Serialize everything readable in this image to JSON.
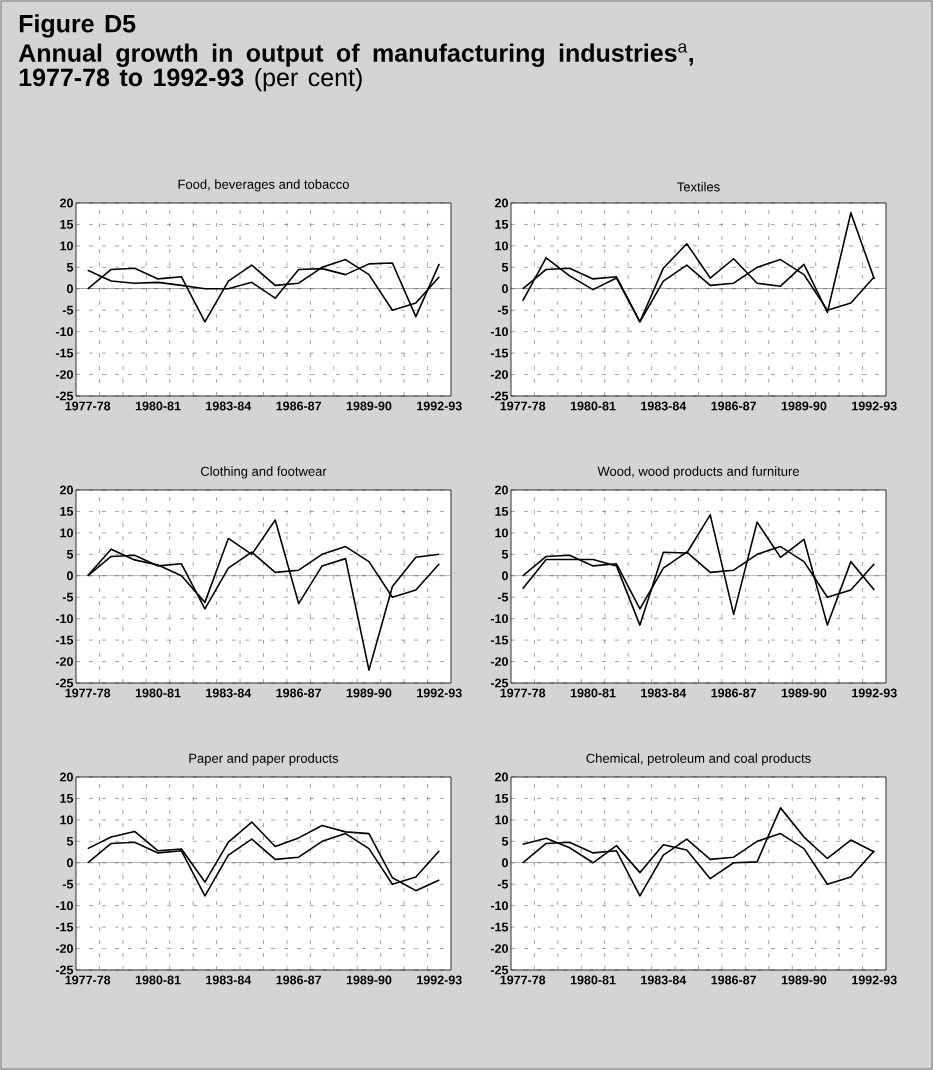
{
  "chart_data": [
    {
      "type": "line",
      "title": "Food, beverages and tobacco",
      "annotations": [
        "Figure D5",
        "**Annual growth in output of manufacturing industries**$^{a}$**, 1977-78 to 1992-93** (per cent)"
      ],
      "categories": [
        "1977-78",
        null,
        null,
        "1980-81",
        null,
        null,
        "1983-84",
        null,
        null,
        "1986-87",
        null,
        null,
        "1989-90",
        null,
        null,
        "1992-93"
      ],
      "series": [
        {
          "color": "#000000",
          "values": [
            4.3,
            1.8,
            1.3,
            1.5,
            0.8,
            0,
            0,
            1.5,
            -2.2,
            4.5,
            4.7,
            3.3,
            5.8,
            6,
            -6.5,
            5.8
          ]
        },
        {
          "color": "#000000",
          "values": [
            0,
            4.5,
            4.8,
            2.3,
            2.8,
            -7.7,
            1.8,
            5.5,
            0.8,
            1.3,
            5,
            6.8,
            3.3,
            -5,
            -3.3,
            2.8
          ]
        }
      ],
      "ylim": [
        -25,
        20
      ],
      "yticks": [
        -25,
        -20,
        -15,
        -10,
        -5,
        0,
        5,
        10,
        15,
        20
      ],
      "grid": true,
      "ref_lines": [
        {
          "axis": "y",
          "value": 0
        }
      ]
    },
    {
      "type": "line",
      "title": "Textiles",
      "categories": [
        "1977-78",
        null,
        null,
        "1980-81",
        null,
        null,
        "1983-84",
        null,
        null,
        "1986-87",
        null,
        null,
        "1989-90",
        null,
        null,
        "1992-93"
      ],
      "series": [
        {
          "color": "#000000",
          "values": [
            -2.8,
            7.2,
            3,
            -0.2,
            2.5,
            -7.7,
            4.8,
            10.5,
            2.5,
            7,
            1.3,
            0.6,
            5.7,
            -5.5,
            17.7,
            2.3
          ]
        },
        {
          "color": "#000000",
          "values": [
            0,
            4.5,
            4.8,
            2.3,
            2.8,
            -7.7,
            1.8,
            5.5,
            0.8,
            1.3,
            5,
            6.8,
            3.3,
            -5,
            -3.3,
            2.8
          ]
        }
      ],
      "ylim": [
        -25,
        20
      ],
      "yticks": [
        -25,
        -20,
        -15,
        -10,
        -5,
        0,
        5,
        10,
        15,
        20
      ],
      "grid": true,
      "ref_lines": [
        {
          "axis": "y",
          "value": 0
        }
      ]
    },
    {
      "type": "line",
      "title": "Clothing and footwear",
      "categories": [
        "1977-78",
        null,
        null,
        "1980-81",
        null,
        null,
        "1983-84",
        null,
        null,
        "1986-87",
        null,
        null,
        "1989-90",
        null,
        null,
        "1992-93"
      ],
      "series": [
        {
          "color": "#000000",
          "values": [
            0,
            6.2,
            3.7,
            2.5,
            0,
            -6.2,
            8.7,
            5,
            13,
            -6.5,
            2.3,
            4,
            -22,
            -2.5,
            4.3,
            5
          ]
        },
        {
          "color": "#000000",
          "values": [
            0,
            4.5,
            4.8,
            2.3,
            2.8,
            -7.7,
            1.8,
            5.5,
            0.8,
            1.3,
            5,
            6.8,
            3.3,
            -5,
            -3.3,
            2.8
          ]
        }
      ],
      "ylim": [
        -25,
        20
      ],
      "yticks": [
        -25,
        -20,
        -15,
        -10,
        -5,
        0,
        5,
        10,
        15,
        20
      ],
      "grid": true,
      "ref_lines": [
        {
          "axis": "y",
          "value": 0
        }
      ]
    },
    {
      "type": "line",
      "title": "Wood, wood products and furniture",
      "categories": [
        "1977-78",
        null,
        null,
        "1980-81",
        null,
        null,
        "1983-84",
        null,
        null,
        "1986-87",
        null,
        null,
        "1989-90",
        null,
        null,
        "1992-93"
      ],
      "series": [
        {
          "color": "#000000",
          "values": [
            -3,
            3.8,
            3.8,
            3.8,
            2.3,
            -11.5,
            5.5,
            5.3,
            14.2,
            -9,
            12.5,
            4.3,
            8.5,
            -11.5,
            3.3,
            -3.3
          ]
        },
        {
          "color": "#000000",
          "values": [
            0,
            4.5,
            4.8,
            2.3,
            2.8,
            -7.7,
            1.8,
            5.5,
            0.8,
            1.3,
            5,
            6.8,
            3.3,
            -5,
            -3.3,
            2.8
          ]
        }
      ],
      "ylim": [
        -25,
        20
      ],
      "yticks": [
        -25,
        -20,
        -15,
        -10,
        -5,
        0,
        5,
        10,
        15,
        20
      ],
      "grid": true,
      "ref_lines": [
        {
          "axis": "y",
          "value": 0
        }
      ]
    },
    {
      "type": "line",
      "title": "Paper and paper products",
      "categories": [
        "1977-78",
        null,
        null,
        "1980-81",
        null,
        null,
        "1983-84",
        null,
        null,
        "1986-87",
        null,
        null,
        "1989-90",
        null,
        null,
        "1992-93"
      ],
      "series": [
        {
          "color": "#000000",
          "values": [
            3.3,
            6,
            7.3,
            2.8,
            3.2,
            -4.5,
            4.8,
            9.5,
            3.8,
            5.8,
            8.7,
            7.2,
            6.8,
            -3.5,
            -6.5,
            -4
          ]
        },
        {
          "color": "#000000",
          "values": [
            0,
            4.5,
            4.8,
            2.3,
            2.8,
            -7.7,
            1.8,
            5.5,
            0.8,
            1.3,
            5,
            6.8,
            3.3,
            -5,
            -3.3,
            2.8
          ]
        }
      ],
      "ylim": [
        -25,
        20
      ],
      "yticks": [
        -25,
        -20,
        -15,
        -10,
        -5,
        0,
        5,
        10,
        15,
        20
      ],
      "grid": true,
      "ref_lines": [
        {
          "axis": "y",
          "value": 0
        }
      ]
    },
    {
      "type": "line",
      "title": "Chemical, petroleum and coal products",
      "categories": [
        "1977-78",
        null,
        null,
        "1980-81",
        null,
        null,
        "1983-84",
        null,
        null,
        "1986-87",
        null,
        null,
        "1989-90",
        null,
        null,
        "1992-93"
      ],
      "series": [
        {
          "color": "#000000",
          "values": [
            4.3,
            5.7,
            3.5,
            0,
            4,
            -2.3,
            4.2,
            3,
            -3.7,
            0,
            0.2,
            12.8,
            6,
            1,
            5.3,
            2.5
          ]
        },
        {
          "color": "#000000",
          "values": [
            0,
            4.5,
            4.8,
            2.3,
            2.8,
            -7.7,
            1.8,
            5.5,
            0.8,
            1.3,
            5,
            6.8,
            3.3,
            -5,
            -3.3,
            2.8
          ]
        }
      ],
      "ylim": [
        -25,
        20
      ],
      "yticks": [
        -25,
        -20,
        -15,
        -10,
        -5,
        0,
        5,
        10,
        15,
        20
      ],
      "grid": true,
      "ref_lines": [
        {
          "axis": "y",
          "value": 0
        }
      ]
    }
  ]
}
